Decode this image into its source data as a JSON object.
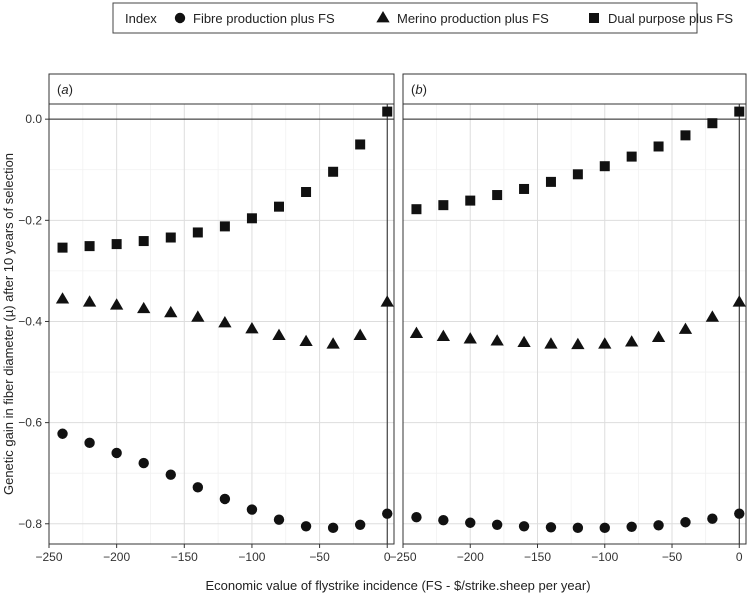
{
  "chart_data": {
    "type": "scatter",
    "legend": {
      "title": "Index",
      "placement": "top",
      "entries": [
        {
          "name": "Fibre production plus FS",
          "marker": "circle"
        },
        {
          "name": "Merino production plus FS",
          "marker": "triangle"
        },
        {
          "name": "Dual purpose plus FS",
          "marker": "square"
        }
      ]
    },
    "xlabel": "Economic value of flystrike incidence (FS - $/strike.sheep per year)",
    "ylabel": "Genetic gain in fiber diameter (µ) after 10 years of selection",
    "xlim": [
      -250,
      5
    ],
    "ylim": [
      -0.84,
      0.03
    ],
    "x_ticks": [
      -250,
      -200,
      -150,
      -100,
      -50,
      0
    ],
    "y_ticks": [
      0.0,
      -0.2,
      -0.4,
      -0.6,
      -0.8
    ],
    "x_tick_labels": [
      "−250",
      "−200",
      "−150",
      "−100",
      "−50",
      "0"
    ],
    "y_tick_labels": [
      "0.0",
      "−0.2",
      "−0.4",
      "−0.6",
      "−0.8"
    ],
    "grid": true,
    "reference_lines": {
      "y": 0,
      "x": 0
    },
    "panels": [
      {
        "label": "a",
        "x": [
          -240,
          -220,
          -200,
          -180,
          -160,
          -140,
          -120,
          -100,
          -80,
          -60,
          -40,
          -20,
          0
        ],
        "series": [
          {
            "name": "Fibre production plus FS",
            "marker": "circle",
            "values": [
              -0.622,
              -0.64,
              -0.66,
              -0.68,
              -0.703,
              -0.728,
              -0.751,
              -0.772,
              -0.792,
              -0.805,
              -0.808,
              -0.802,
              -0.78
            ]
          },
          {
            "name": "Merino production plus FS",
            "marker": "triangle",
            "values": [
              -0.356,
              -0.362,
              -0.368,
              -0.375,
              -0.383,
              -0.392,
              -0.403,
              -0.415,
              -0.428,
              -0.44,
              -0.445,
              -0.428,
              -0.362
            ]
          },
          {
            "name": "Dual purpose plus FS",
            "marker": "square",
            "values": [
              -0.254,
              -0.251,
              -0.247,
              -0.241,
              -0.234,
              -0.224,
              -0.212,
              -0.196,
              -0.173,
              -0.144,
              -0.104,
              -0.05,
              0.015
            ]
          }
        ]
      },
      {
        "label": "b",
        "x": [
          -240,
          -220,
          -200,
          -180,
          -160,
          -140,
          -120,
          -100,
          -80,
          -60,
          -40,
          -20,
          0
        ],
        "series": [
          {
            "name": "Fibre production plus FS",
            "marker": "circle",
            "values": [
              -0.787,
              -0.793,
              -0.798,
              -0.802,
              -0.805,
              -0.807,
              -0.808,
              -0.808,
              -0.806,
              -0.803,
              -0.797,
              -0.79,
              -0.78
            ]
          },
          {
            "name": "Merino production plus FS",
            "marker": "triangle",
            "values": [
              -0.424,
              -0.43,
              -0.435,
              -0.439,
              -0.442,
              -0.445,
              -0.446,
              -0.445,
              -0.441,
              -0.432,
              -0.416,
              -0.392,
              -0.362
            ]
          },
          {
            "name": "Dual purpose plus FS",
            "marker": "square",
            "values": [
              -0.178,
              -0.17,
              -0.161,
              -0.15,
              -0.138,
              -0.124,
              -0.109,
              -0.093,
              -0.074,
              -0.054,
              -0.032,
              -0.008,
              0.015
            ]
          }
        ]
      }
    ]
  }
}
